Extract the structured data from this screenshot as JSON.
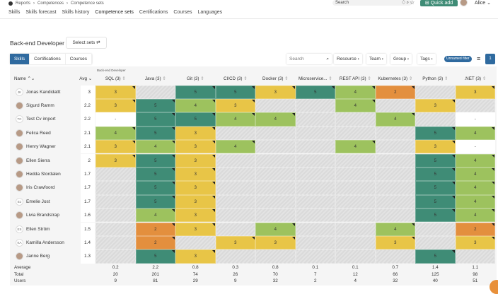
{
  "breadcrumb": [
    "Reports",
    "Competences",
    "Competence sets"
  ],
  "header": {
    "search_placeholder": "Search",
    "quick_add": "Quick add",
    "user": "Alice"
  },
  "tabs": [
    "Skills",
    "Skills forecast",
    "Skills history",
    "Competence sets",
    "Certifications",
    "Courses",
    "Languages"
  ],
  "active_tab": "Competence sets",
  "page": {
    "title": "Back-end Developer",
    "select_sets": "Select sets ⇄"
  },
  "segments": [
    "Skills",
    "Certifications",
    "Courses"
  ],
  "toolbar": {
    "search_placeholder": "Search",
    "resource": "Resource ›",
    "team": "Team ›",
    "group": "Group ›",
    "tags": "Tags ›",
    "filter": "Unnamed filter",
    "filter_count": "1"
  },
  "table": {
    "group_label": "Back-end Developer",
    "name_header": "Name ⌃⌄",
    "avg_header": "Avg ⌄",
    "columns": [
      "SQL (3)",
      "Java (3)",
      "Git (3)",
      "CI/CD (3)",
      "Docker (3)",
      "Microservice...",
      "REST API (3)",
      "Kubernetes (3)",
      "Python (3)",
      ".NET (3)"
    ],
    "rows": [
      {
        "name": "Jonas Kandidattt",
        "initials": "JK",
        "avg": "3",
        "v": [
          3,
          null,
          5,
          5,
          3,
          5,
          4,
          2,
          null,
          3
        ]
      },
      {
        "name": "Sigurd Ramm",
        "initials": "",
        "avg": "2.2",
        "v": [
          3,
          5,
          4,
          3,
          null,
          null,
          4,
          null,
          3,
          null
        ]
      },
      {
        "name": "Test Cv import",
        "initials": "TC",
        "avg": "2.2",
        "v": [
          "-",
          5,
          5,
          4,
          4,
          null,
          null,
          4,
          null,
          "-"
        ]
      },
      {
        "name": "Felica Reed",
        "initials": "",
        "avg": "2.1",
        "v": [
          4,
          5,
          3,
          null,
          null,
          null,
          null,
          null,
          5,
          4
        ]
      },
      {
        "name": "Henry Wagner",
        "initials": "",
        "avg": "2.1",
        "v": [
          3,
          4,
          3,
          4,
          null,
          null,
          4,
          null,
          3,
          "-"
        ]
      },
      {
        "name": "Ellen Sierra",
        "initials": "",
        "avg": "2",
        "v": [
          3,
          5,
          3,
          null,
          null,
          null,
          null,
          null,
          5,
          4
        ]
      },
      {
        "name": "Hedda Stordalen",
        "initials": "",
        "avg": "1.7",
        "v": [
          null,
          5,
          3,
          null,
          null,
          null,
          null,
          null,
          5,
          4
        ]
      },
      {
        "name": "Iris Crawfoord",
        "initials": "",
        "avg": "1.7",
        "v": [
          null,
          5,
          3,
          null,
          null,
          null,
          null,
          null,
          5,
          4
        ]
      },
      {
        "name": "Emelie Jost",
        "initials": "EJ",
        "avg": "1.7",
        "v": [
          null,
          5,
          3,
          null,
          null,
          null,
          null,
          null,
          5,
          4
        ]
      },
      {
        "name": "Livia Brandstrap",
        "initials": "",
        "avg": "1.6",
        "v": [
          null,
          4,
          3,
          null,
          null,
          null,
          null,
          null,
          5,
          4
        ]
      },
      {
        "name": "Ellen Ström",
        "initials": "ES",
        "avg": "1.5",
        "v": [
          null,
          2,
          3,
          null,
          4,
          null,
          null,
          4,
          null,
          2
        ]
      },
      {
        "name": "Kamilla Andersson",
        "initials": "KA",
        "avg": "1.4",
        "v": [
          null,
          2,
          null,
          3,
          3,
          null,
          null,
          3,
          null,
          3
        ]
      },
      {
        "name": "Janne Berg",
        "initials": "",
        "avg": "1.3",
        "v": [
          null,
          5,
          3,
          null,
          null,
          null,
          null,
          null,
          5,
          null
        ]
      }
    ],
    "footer": [
      {
        "label": "Average",
        "v": [
          "0.2",
          "2.2",
          "0.8",
          "0.3",
          "0.8",
          "0.1",
          "0.1",
          "0.7",
          "1.4",
          "1.1"
        ]
      },
      {
        "label": "Total",
        "v": [
          "20",
          "201",
          "74",
          "26",
          "70",
          "7",
          "12",
          "66",
          "125",
          "98"
        ]
      },
      {
        "label": "Users",
        "v": [
          "9",
          "81",
          "29",
          "9",
          "32",
          "2",
          "4",
          "32",
          "40",
          "51"
        ]
      }
    ]
  },
  "colors": {
    "5": "#3f8c76",
    "4": "#9dc25e",
    "3": "#e8c547",
    "2": "#e38f3e",
    "accent": "#3f8c76",
    "blue": "#2f6a9f"
  }
}
